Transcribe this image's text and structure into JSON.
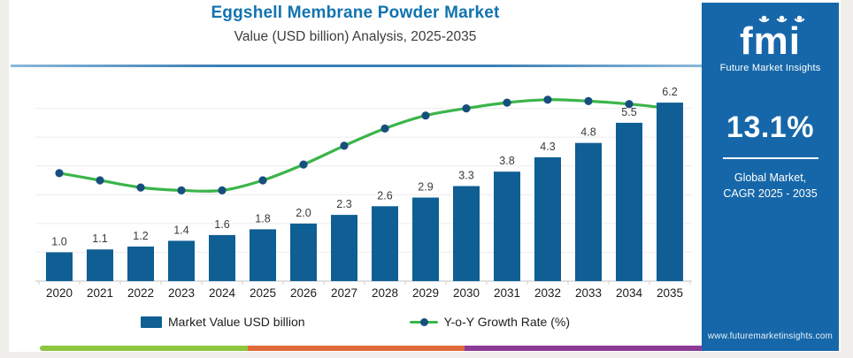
{
  "header": {
    "title": "Eggshell Membrane Powder Market",
    "subtitle": "Value (USD billion) Analysis, 2025-2035"
  },
  "chart_data": {
    "type": "bar",
    "title": "Eggshell Membrane Powder Market",
    "subtitle": "Value (USD billion) Analysis, 2025-2035",
    "categories": [
      "2020",
      "2021",
      "2022",
      "2023",
      "2024",
      "2025",
      "2026",
      "2027",
      "2028",
      "2029",
      "2030",
      "2031",
      "2032",
      "2033",
      "2034",
      "2035"
    ],
    "series": [
      {
        "name": "Market Value USD billion",
        "type": "bar",
        "color": "#0f5f94",
        "values": [
          1.0,
          1.1,
          1.2,
          1.4,
          1.6,
          1.8,
          2.0,
          2.3,
          2.6,
          2.9,
          3.3,
          3.8,
          4.3,
          4.8,
          5.5,
          6.2
        ],
        "labels": [
          "1.0",
          "1.1",
          "1.2",
          "1.4",
          "1.6",
          "1.8",
          "2.0",
          "2.3",
          "2.6",
          "2.9",
          "3.3",
          "3.8",
          "4.3",
          "4.8",
          "5.5",
          "6.2"
        ]
      },
      {
        "name": "Y-o-Y Growth Rate (%)",
        "type": "line",
        "color": "#3bb54a",
        "marker_color": "#164f7d",
        "values_estimated": [
          9.7,
          9.2,
          8.7,
          8.5,
          8.5,
          9.2,
          10.3,
          11.6,
          12.8,
          13.7,
          14.2,
          14.6,
          14.8,
          14.7,
          14.5,
          14.2
        ],
        "data_labels_shown": false
      }
    ],
    "value_axis": {
      "min": 0,
      "max": 7,
      "gridline_values": [
        1,
        2,
        3,
        4,
        5,
        6
      ],
      "labels_visible": false
    },
    "growth_axis_render_mapping": {
      "baseline_value": 2.2,
      "top_value": 16.2
    },
    "grid": "horizontal-light",
    "legend_position": "bottom",
    "xlabel": "",
    "ylabel": ""
  },
  "legend": {
    "bar_label": "Market Value USD billion",
    "line_label": "Y-o-Y Growth Rate (%)"
  },
  "sidebar": {
    "logo_text": "fmi",
    "logo_subtext": "Future Market Insights",
    "cagr_value": "13.1%",
    "cagr_label_line1": "Global Market,",
    "cagr_label_line2": "CAGR 2025 - 2035",
    "website": "www.futuremarketinsights.com"
  },
  "colors": {
    "bar": "#0f5f94",
    "line": "#3bb54a",
    "marker": "#164f7d",
    "title_blue": "#1273b0",
    "sidebar_blue": "#1667a9",
    "stripe_green": "#8dc63f",
    "stripe_orange": "#e0693a",
    "stripe_purple": "#8c3b94",
    "gridline": "#ececec",
    "axis": "#cfcfcf"
  }
}
